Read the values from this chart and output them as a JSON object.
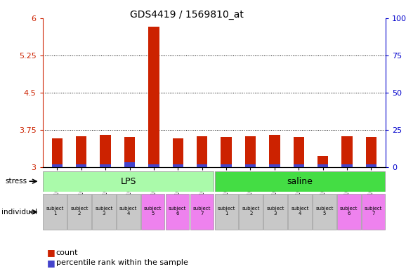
{
  "title": "GDS4419 / 1569810_at",
  "samples": [
    "GSM1004102",
    "GSM1004104",
    "GSM1004106",
    "GSM1004108",
    "GSM1004110",
    "GSM1004112",
    "GSM1004114",
    "GSM1004101",
    "GSM1004103",
    "GSM1004105",
    "GSM1004107",
    "GSM1004109",
    "GSM1004111",
    "GSM1004113"
  ],
  "red_values": [
    3.58,
    3.62,
    3.64,
    3.6,
    5.82,
    3.58,
    3.62,
    3.6,
    3.62,
    3.64,
    3.6,
    3.22,
    3.62,
    3.6
  ],
  "blue_heights": [
    0.06,
    0.06,
    0.06,
    0.1,
    0.06,
    0.06,
    0.06,
    0.06,
    0.06,
    0.06,
    0.06,
    0.06,
    0.06,
    0.06
  ],
  "ymin": 3.0,
  "ymax": 6.0,
  "yticks": [
    3.0,
    3.75,
    4.5,
    5.25,
    6.0
  ],
  "ytick_labels": [
    "3",
    "3.75",
    "4.5",
    "5.25",
    "6"
  ],
  "y2ticks": [
    0,
    25,
    50,
    75,
    100
  ],
  "y2tick_labels": [
    "0",
    "25",
    "50",
    "75",
    "100%"
  ],
  "stress_groups": [
    {
      "label": "LPS",
      "start": 0,
      "end": 7,
      "color": "#AAFAAA"
    },
    {
      "label": "saline",
      "start": 7,
      "end": 14,
      "color": "#44DD44"
    }
  ],
  "individual_colors": [
    "#C8C8C8",
    "#C8C8C8",
    "#C8C8C8",
    "#C8C8C8",
    "#EE82EE",
    "#EE82EE",
    "#EE82EE",
    "#C8C8C8",
    "#C8C8C8",
    "#C8C8C8",
    "#C8C8C8",
    "#C8C8C8",
    "#EE82EE",
    "#EE82EE"
  ],
  "individual_labels": [
    "subject\n1",
    "subject\n2",
    "subject\n3",
    "subject\n4",
    "subject\n5",
    "subject\n6",
    "subject\n7",
    "subject\n1",
    "subject\n2",
    "subject\n3",
    "subject\n4",
    "subject\n5",
    "subject\n6",
    "subject\n7"
  ],
  "red_color": "#CC2200",
  "blue_color": "#4444CC",
  "grid_color": "#000000",
  "axis_color_left": "#CC2200",
  "axis_color_right": "#0000CC",
  "plot_bg": "#FFFFFF",
  "fig_bg": "#FFFFFF",
  "bar_width": 0.45
}
